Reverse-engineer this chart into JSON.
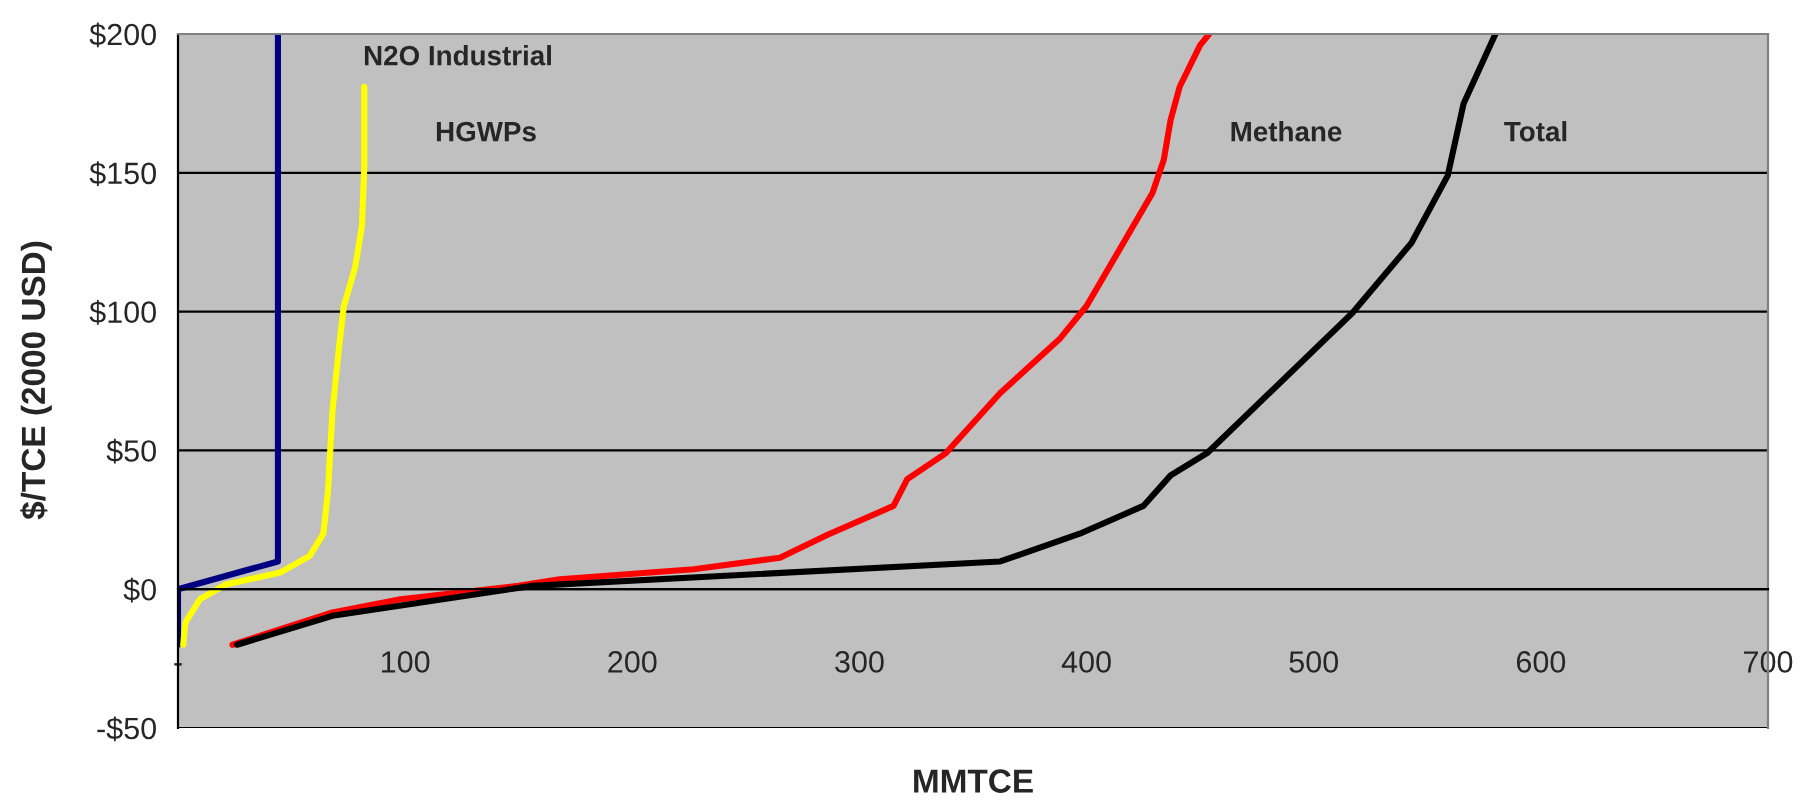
{
  "chart_data": {
    "type": "line",
    "xlabel": "MMTCE",
    "ylabel": "$/TCE (2000 USD)",
    "xlim": [
      0,
      700
    ],
    "ylim": [
      -50,
      200
    ],
    "xticks": [
      {
        "value": 0,
        "label": "-"
      },
      100,
      200,
      300,
      400,
      500,
      600,
      700
    ],
    "yticks": [
      {
        "value": -50,
        "label": "-$50"
      },
      {
        "value": 0,
        "label": "$0"
      },
      {
        "value": 50,
        "label": "$50"
      },
      {
        "value": 100,
        "label": "$100"
      },
      {
        "value": 150,
        "label": "$150"
      },
      {
        "value": 200,
        "label": "$200"
      }
    ],
    "grid": "y",
    "legend": false,
    "marker": "none",
    "line_style": "solid",
    "series": [
      {
        "color": "#000080",
        "x": [
          0,
          0,
          44,
          44
        ],
        "values": [
          -20,
          0,
          10,
          200
        ]
      },
      {
        "color": "#ffff00",
        "x": [
          2.3,
          3.2,
          9.7,
          21,
          45,
          58,
          64,
          66,
          68,
          71,
          73,
          78,
          81,
          82,
          82
        ],
        "values": [
          -20,
          -12,
          -3.6,
          1.7,
          6,
          12,
          20,
          35,
          64,
          88,
          102,
          116,
          131,
          152,
          181
        ]
      },
      {
        "color": "#ff0000",
        "x": [
          24,
          68,
          98,
          150,
          168,
          227,
          265,
          286,
          315,
          321,
          338,
          362,
          388,
          400,
          429,
          434,
          437,
          441,
          450,
          454
        ],
        "values": [
          -20,
          -8.4,
          -3.6,
          1.2,
          3.6,
          7.2,
          11.3,
          19.6,
          30,
          39.6,
          49,
          70.7,
          90,
          102,
          142.7,
          154.7,
          169,
          181,
          196,
          200
        ]
      },
      {
        "color": "#000000",
        "x": [
          26,
          68,
          156,
          362,
          397,
          425,
          437,
          453,
          517,
          543,
          559,
          566,
          580
        ],
        "values": [
          -20,
          -9.6,
          1.2,
          10,
          20,
          30,
          41,
          49,
          99.5,
          124.7,
          149,
          175,
          200
        ]
      }
    ],
    "annotations": [
      "N2O Industrial",
      "HGWPs",
      "Methane",
      "Total"
    ]
  }
}
